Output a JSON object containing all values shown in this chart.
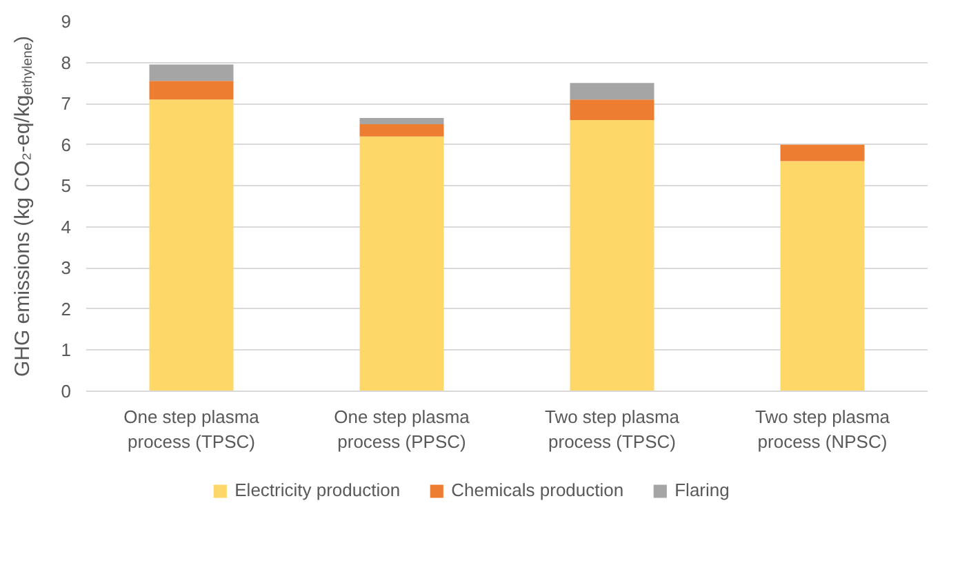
{
  "chart_data": {
    "type": "bar",
    "stacked": true,
    "ylabel": "GHG emissions (kg CO₂-eq/kg$_{ethylene}$)",
    "categories": [
      "One step plasma\nprocess (TPSC)",
      "One step plasma\nprocess (PPSC)",
      "Two step plasma\nprocess (TPSC)",
      "Two step plasma\nprocess (NPSC)"
    ],
    "series": [
      {
        "name": "Electricity production",
        "color": "#fdd868",
        "values": [
          7.1,
          6.2,
          6.6,
          5.6
        ]
      },
      {
        "name": "Chemicals production",
        "color": "#ed7d31",
        "values": [
          0.45,
          0.3,
          0.5,
          0.4
        ]
      },
      {
        "name": "Flaring",
        "color": "#a5a5a5",
        "values": [
          0.4,
          0.15,
          0.4,
          0
        ]
      }
    ],
    "ylim": [
      0,
      9
    ],
    "yticks": [
      0,
      1,
      2,
      3,
      4,
      5,
      6,
      7,
      8,
      9
    ],
    "grid": "y",
    "legend": "bottom"
  }
}
